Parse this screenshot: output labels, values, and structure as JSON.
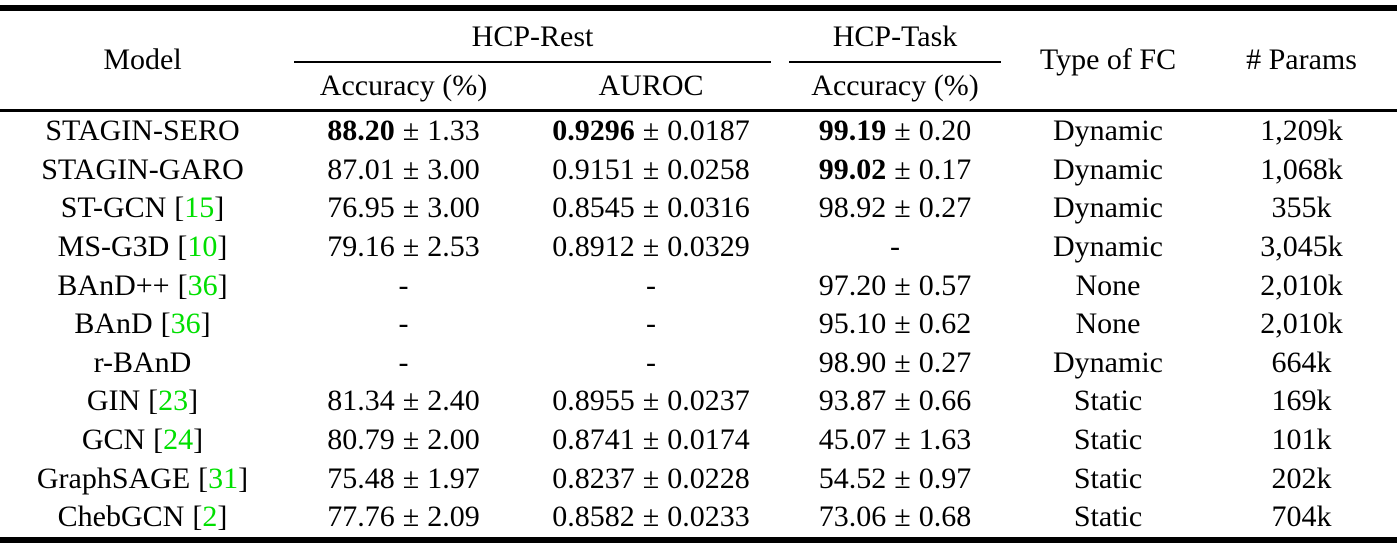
{
  "symbols": {
    "pm": "±",
    "missing": "-",
    "lbracket": "[",
    "rbracket": "]"
  },
  "colors": {
    "citation_green": "#00df00",
    "text": "#000000",
    "background": "#ffffff",
    "rule": "#000000"
  },
  "table": {
    "header": {
      "model": "Model",
      "groups": {
        "rest": "HCP-Rest",
        "task": "HCP-Task"
      },
      "sub": {
        "rest_acc": "Accuracy (%)",
        "auroc": "AUROC",
        "task_acc": "Accuracy (%)"
      },
      "fc": "Type of FC",
      "params": "# Params"
    },
    "rows": [
      {
        "model": {
          "name": "STAGIN-SERO",
          "cite": null
        },
        "rest_acc": {
          "mean": "88.20",
          "err": "1.33",
          "bold": true
        },
        "auroc": {
          "mean": "0.9296",
          "err": "0.0187",
          "bold": true
        },
        "task_acc": {
          "mean": "99.19",
          "err": "0.20",
          "bold": true
        },
        "fc": "Dynamic",
        "params": "1,209k"
      },
      {
        "model": {
          "name": "STAGIN-GARO",
          "cite": null
        },
        "rest_acc": {
          "mean": "87.01",
          "err": "3.00",
          "bold": false
        },
        "auroc": {
          "mean": "0.9151",
          "err": "0.0258",
          "bold": false
        },
        "task_acc": {
          "mean": "99.02",
          "err": "0.17",
          "bold": true
        },
        "fc": "Dynamic",
        "params": "1,068k"
      },
      {
        "model": {
          "name": "ST-GCN",
          "cite": "15"
        },
        "rest_acc": {
          "mean": "76.95",
          "err": "3.00",
          "bold": false
        },
        "auroc": {
          "mean": "0.8545",
          "err": "0.0316",
          "bold": false
        },
        "task_acc": {
          "mean": "98.92",
          "err": "0.27",
          "bold": false
        },
        "fc": "Dynamic",
        "params": "355k"
      },
      {
        "model": {
          "name": "MS-G3D",
          "cite": "10"
        },
        "rest_acc": {
          "mean": "79.16",
          "err": "2.53",
          "bold": false
        },
        "auroc": {
          "mean": "0.8912",
          "err": "0.0329",
          "bold": false
        },
        "task_acc": null,
        "fc": "Dynamic",
        "params": "3,045k"
      },
      {
        "model": {
          "name": "BAnD++",
          "cite": "36"
        },
        "rest_acc": null,
        "auroc": null,
        "task_acc": {
          "mean": "97.20",
          "err": "0.57",
          "bold": false
        },
        "fc": "None",
        "params": "2,010k"
      },
      {
        "model": {
          "name": "BAnD",
          "cite": "36"
        },
        "rest_acc": null,
        "auroc": null,
        "task_acc": {
          "mean": "95.10",
          "err": "0.62",
          "bold": false
        },
        "fc": "None",
        "params": "2,010k"
      },
      {
        "model": {
          "name": "r-BAnD",
          "cite": null
        },
        "rest_acc": null,
        "auroc": null,
        "task_acc": {
          "mean": "98.90",
          "err": "0.27",
          "bold": false
        },
        "fc": "Dynamic",
        "params": "664k"
      },
      {
        "model": {
          "name": "GIN",
          "cite": "23"
        },
        "rest_acc": {
          "mean": "81.34",
          "err": "2.40",
          "bold": false
        },
        "auroc": {
          "mean": "0.8955",
          "err": "0.0237",
          "bold": false
        },
        "task_acc": {
          "mean": "93.87",
          "err": "0.66",
          "bold": false
        },
        "fc": "Static",
        "params": "169k"
      },
      {
        "model": {
          "name": "GCN",
          "cite": "24"
        },
        "rest_acc": {
          "mean": "80.79",
          "err": "2.00",
          "bold": false
        },
        "auroc": {
          "mean": "0.8741",
          "err": "0.0174",
          "bold": false
        },
        "task_acc": {
          "mean": "45.07",
          "err": "1.63",
          "bold": false
        },
        "fc": "Static",
        "params": "101k"
      },
      {
        "model": {
          "name": "GraphSAGE",
          "cite": "31"
        },
        "rest_acc": {
          "mean": "75.48",
          "err": "1.97",
          "bold": false
        },
        "auroc": {
          "mean": "0.8237",
          "err": "0.0228",
          "bold": false
        },
        "task_acc": {
          "mean": "54.52",
          "err": "0.97",
          "bold": false
        },
        "fc": "Static",
        "params": "202k"
      },
      {
        "model": {
          "name": "ChebGCN",
          "cite": "2"
        },
        "rest_acc": {
          "mean": "77.76",
          "err": "2.09",
          "bold": false
        },
        "auroc": {
          "mean": "0.8582",
          "err": "0.0233",
          "bold": false
        },
        "task_acc": {
          "mean": "73.06",
          "err": "0.68",
          "bold": false
        },
        "fc": "Static",
        "params": "704k"
      }
    ]
  }
}
